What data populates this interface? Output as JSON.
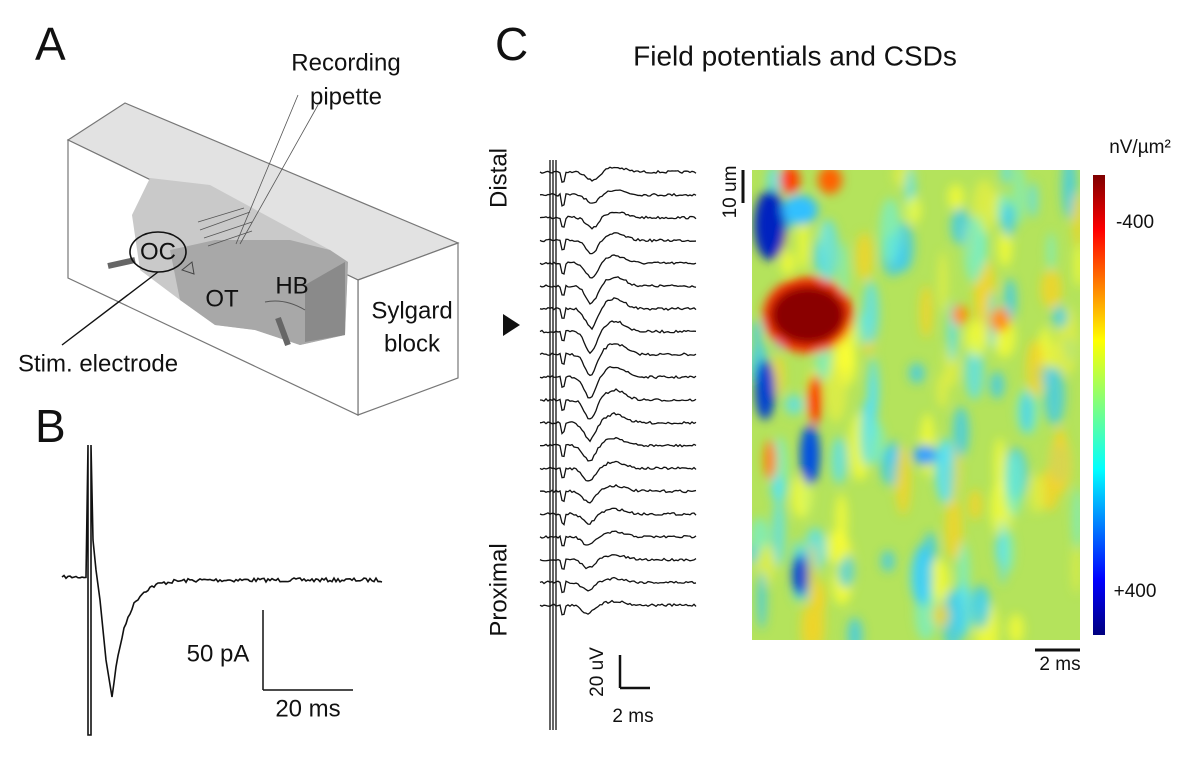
{
  "panels": {
    "a": {
      "letter": "A",
      "pipette": [
        "Recording",
        "pipette"
      ],
      "oc": "OC",
      "ot": "OT",
      "hb": "HB",
      "block": [
        "Sylgard",
        "block"
      ],
      "electrode": "Stim. electrode"
    },
    "b": {
      "letter": "B",
      "amp": "50 pA",
      "time": "20 ms"
    },
    "c": {
      "letter": "C",
      "title": "Field potentials and CSDs",
      "distal": "Distal",
      "proximal": "Proximal",
      "amp": "20 uV",
      "time": "2 ms",
      "depth": "10 um",
      "unit": "nV/µm²",
      "low": "-400",
      "high": "+400",
      "map_time": "2 ms"
    }
  }
}
